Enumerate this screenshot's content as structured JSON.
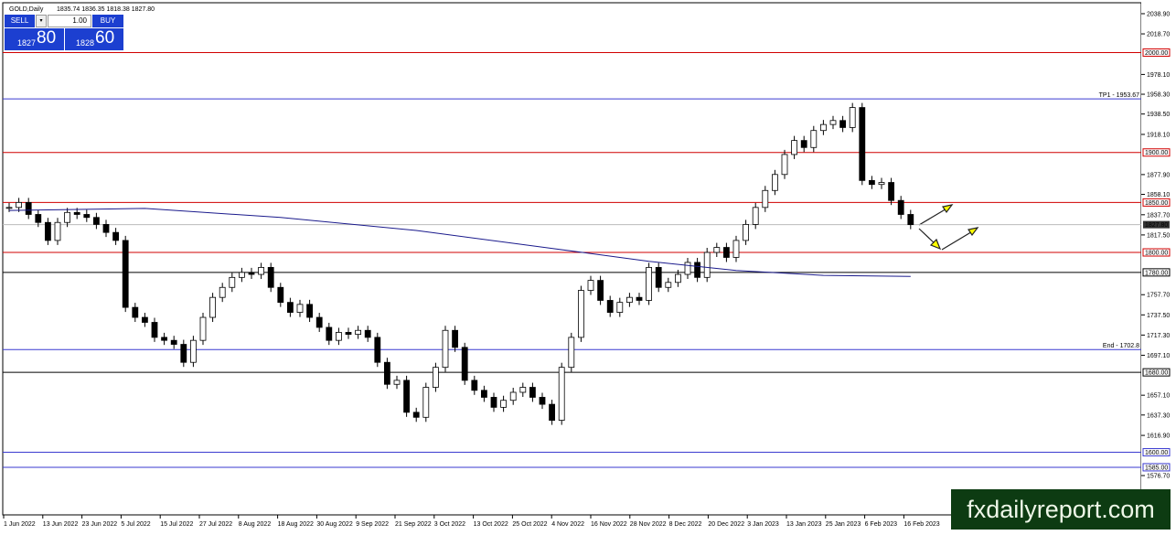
{
  "header": {
    "symbol": "GOLD,Daily",
    "ohlc": "1835.74 1836.35 1818.38 1827.80"
  },
  "trade_panel": {
    "sell": "SELL",
    "lot": "1.00",
    "buy": "BUY",
    "sell_big": "1827",
    "sell_small": "80",
    "buy_big": "1828",
    "buy_small": "60"
  },
  "chart": {
    "price_range": [
      1540.1,
      2052.6
    ],
    "yticks": [
      {
        "value": 2038.9,
        "label": "2038.90"
      },
      {
        "value": 2018.7,
        "label": "2018.70"
      },
      {
        "value": 1978.1,
        "label": "1978.10"
      },
      {
        "value": 1958.3,
        "label": "1958.30"
      },
      {
        "value": 1938.5,
        "label": "1938.50"
      },
      {
        "value": 1918.1,
        "label": "1918.10"
      },
      {
        "value": 1877.9,
        "label": "1877.90"
      },
      {
        "value": 1858.1,
        "label": "1858.10"
      },
      {
        "value": 1837.7,
        "label": "1837.70"
      },
      {
        "value": 1817.5,
        "label": "1817.50"
      },
      {
        "value": 1757.7,
        "label": "1757.70"
      },
      {
        "value": 1737.5,
        "label": "1737.50"
      },
      {
        "value": 1717.3,
        "label": "1717.30"
      },
      {
        "value": 1697.1,
        "label": "1697.10"
      },
      {
        "value": 1657.1,
        "label": "1657.10"
      },
      {
        "value": 1637.3,
        "label": "1637.30"
      },
      {
        "value": 1616.9,
        "label": "1616.90"
      },
      {
        "value": 1576.7,
        "label": "1576.70"
      }
    ],
    "dates": [
      "1 Jun 2022",
      "13 Jun 2022",
      "23 Jun 2022",
      "5 Jul 2022",
      "15 Jul 2022",
      "27 Jul 2022",
      "8 Aug 2022",
      "18 Aug 2022",
      "30 Aug 2022",
      "9 Sep 2022",
      "21 Sep 2022",
      "3 Oct 2022",
      "13 Oct 2022",
      "25 Oct 2022",
      "4 Nov 2022",
      "16 Nov 2022",
      "28 Nov 2022",
      "8 Dec 2022",
      "20 Dec 2022",
      "3 Jan 2023",
      "13 Jan 2023",
      "25 Jan 2023",
      "6 Feb 2023",
      "16 Feb 2023"
    ],
    "closes": [
      1845,
      1850,
      1838,
      1830,
      1812,
      1830,
      1840,
      1838,
      1835,
      1828,
      1820,
      1812,
      1745,
      1735,
      1730,
      1715,
      1712,
      1708,
      1690,
      1712,
      1735,
      1755,
      1765,
      1775,
      1780,
      1778,
      1785,
      1765,
      1750,
      1740,
      1748,
      1735,
      1725,
      1712,
      1720,
      1718,
      1722,
      1715,
      1690,
      1668,
      1672,
      1640,
      1635,
      1665,
      1685,
      1722,
      1705,
      1672,
      1662,
      1655,
      1645,
      1652,
      1660,
      1665,
      1655,
      1648,
      1632,
      1685,
      1715,
      1762,
      1772,
      1752,
      1740,
      1750,
      1755,
      1752,
      1785,
      1765,
      1770,
      1778,
      1790,
      1775,
      1800,
      1805,
      1795,
      1812,
      1828,
      1845,
      1862,
      1878,
      1898,
      1912,
      1905,
      1922,
      1928,
      1932,
      1925,
      1945,
      1872,
      1868,
      1870,
      1852,
      1838,
      1827.8
    ],
    "ma": [
      [
        0,
        1842
      ],
      [
        14,
        1844
      ],
      [
        28,
        1835
      ],
      [
        42,
        1822
      ],
      [
        56,
        1804
      ],
      [
        66,
        1791
      ],
      [
        75,
        1782
      ],
      [
        84,
        1777
      ],
      [
        93,
        1776
      ]
    ],
    "levels": [
      {
        "price": 2000,
        "label": "2000.00",
        "color": "#d00000"
      },
      {
        "price": 1953.67,
        "label": "TP1 - 1953.67",
        "color": "#3a3ad0"
      },
      {
        "price": 1900,
        "label": "1900.00",
        "color": "#d00000"
      },
      {
        "price": 1850,
        "label": "1850.00",
        "color": "#d00000"
      },
      {
        "price": 1800,
        "label": "1800.00",
        "color": "#d00000"
      },
      {
        "price": 1780,
        "label": "1780.00",
        "color": "#000000"
      },
      {
        "price": 1702.8,
        "label": "End - 1702.8",
        "color": "#3a3ad0"
      },
      {
        "price": 1680,
        "label": "1680.00",
        "color": "#000000"
      },
      {
        "price": 1600,
        "label": "1600.00",
        "color": "#3a3ad0"
      },
      {
        "price": 1585,
        "label": "1585.00",
        "color": "#3a3ad0"
      }
    ],
    "current": {
      "price": 1827.8,
      "label": "1827.80"
    }
  },
  "watermark": "fxdailyreport.com"
}
